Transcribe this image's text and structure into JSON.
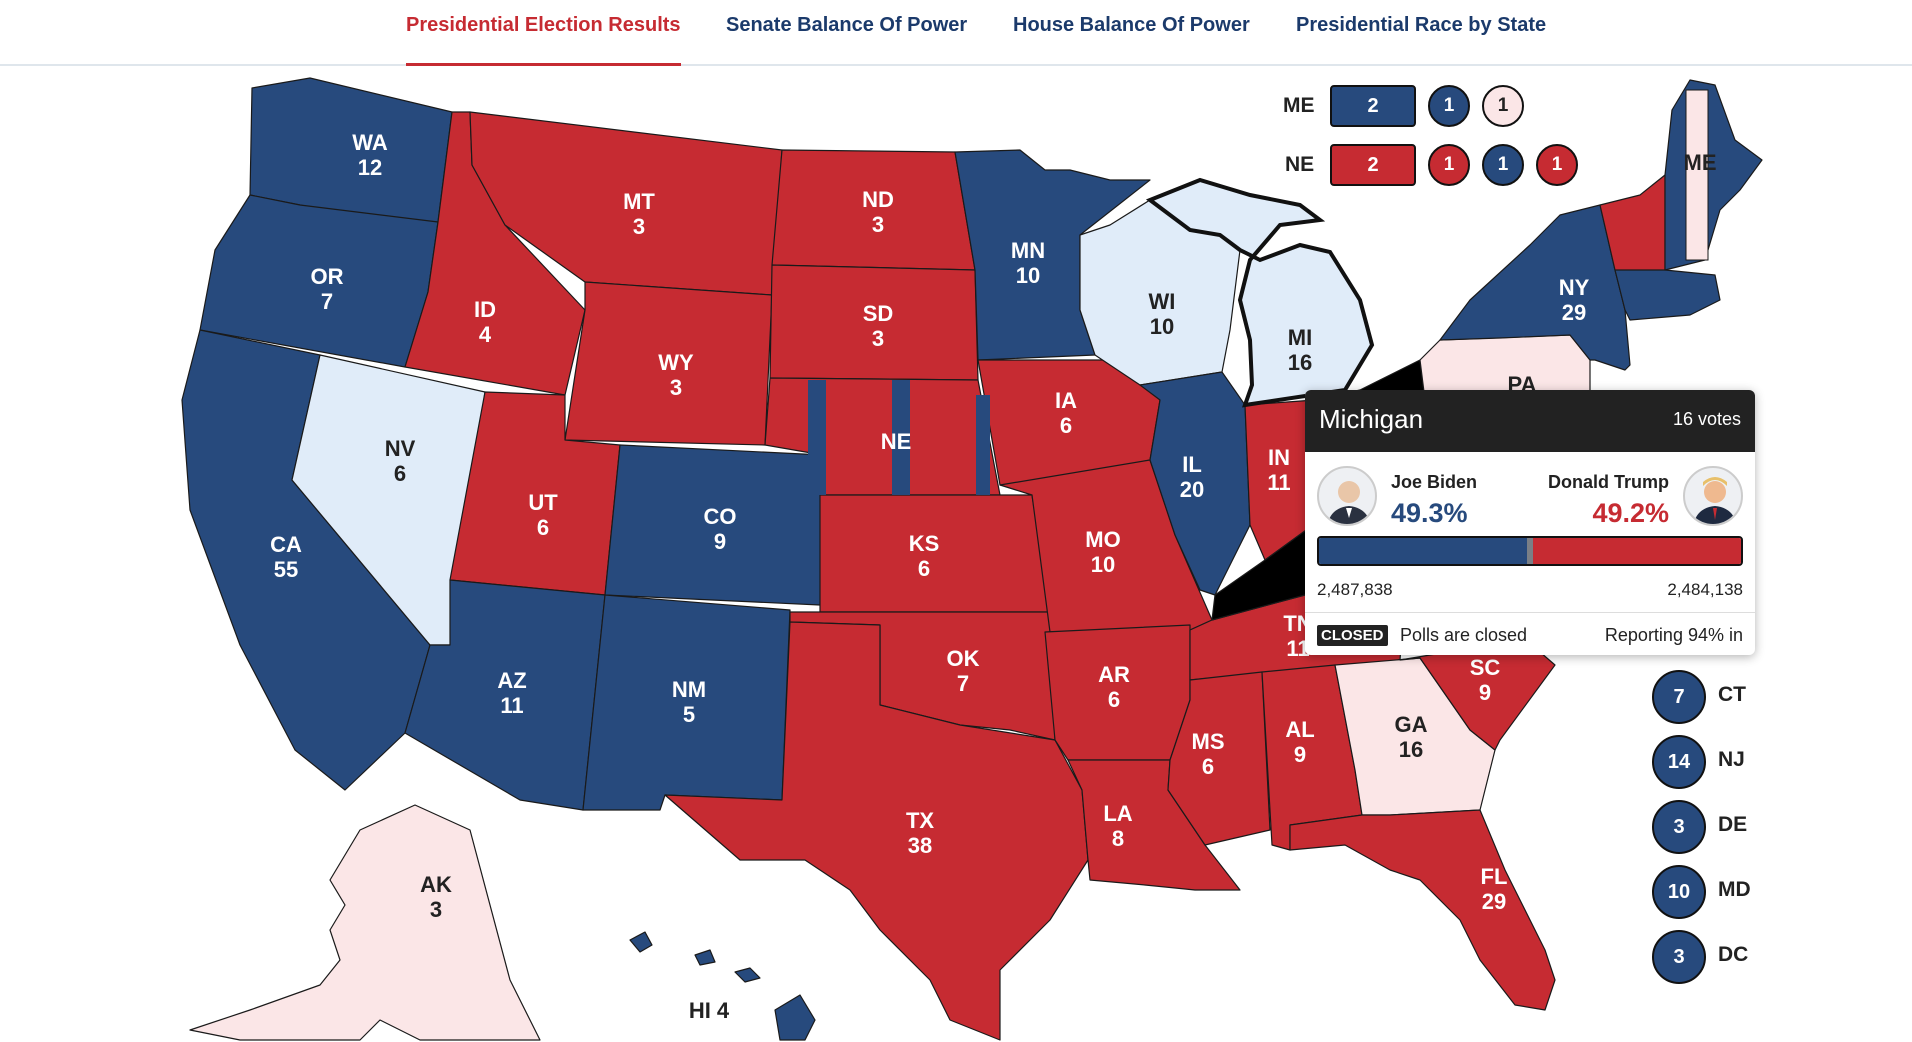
{
  "nav": {
    "tabs": [
      {
        "label": "Presidential Election Results",
        "active": true
      },
      {
        "label": "Senate Balance Of Power",
        "active": false
      },
      {
        "label": "House Balance Of Power",
        "active": false
      },
      {
        "label": "Presidential Race by State",
        "active": false
      }
    ]
  },
  "colors": {
    "dem": "#274a7d",
    "rep": "#c62b32",
    "lean_dem": "#e0ecf9",
    "lean_rep": "#fbe6e7"
  },
  "states": {
    "WA": {
      "abbr": "WA",
      "ev": "12",
      "winner": "dem"
    },
    "OR": {
      "abbr": "OR",
      "ev": "7",
      "winner": "dem"
    },
    "CA": {
      "abbr": "CA",
      "ev": "55",
      "winner": "dem"
    },
    "NV": {
      "abbr": "NV",
      "ev": "6",
      "winner": "lean_dem"
    },
    "ID": {
      "abbr": "ID",
      "ev": "4",
      "winner": "rep"
    },
    "MT": {
      "abbr": "MT",
      "ev": "3",
      "winner": "rep"
    },
    "WY": {
      "abbr": "WY",
      "ev": "3",
      "winner": "rep"
    },
    "UT": {
      "abbr": "UT",
      "ev": "6",
      "winner": "rep"
    },
    "AZ": {
      "abbr": "AZ",
      "ev": "11",
      "winner": "dem"
    },
    "CO": {
      "abbr": "CO",
      "ev": "9",
      "winner": "dem"
    },
    "NM": {
      "abbr": "NM",
      "ev": "5",
      "winner": "dem"
    },
    "ND": {
      "abbr": "ND",
      "ev": "3",
      "winner": "rep"
    },
    "SD": {
      "abbr": "SD",
      "ev": "3",
      "winner": "rep"
    },
    "NE": {
      "abbr": "NE",
      "ev": "",
      "winner": "rep"
    },
    "KS": {
      "abbr": "KS",
      "ev": "6",
      "winner": "rep"
    },
    "OK": {
      "abbr": "OK",
      "ev": "7",
      "winner": "rep"
    },
    "TX": {
      "abbr": "TX",
      "ev": "38",
      "winner": "rep"
    },
    "MN": {
      "abbr": "MN",
      "ev": "10",
      "winner": "dem"
    },
    "IA": {
      "abbr": "IA",
      "ev": "6",
      "winner": "rep"
    },
    "MO": {
      "abbr": "MO",
      "ev": "10",
      "winner": "rep"
    },
    "AR": {
      "abbr": "AR",
      "ev": "6",
      "winner": "rep"
    },
    "LA": {
      "abbr": "LA",
      "ev": "8",
      "winner": "rep"
    },
    "WI": {
      "abbr": "WI",
      "ev": "10",
      "winner": "lean_dem"
    },
    "MI": {
      "abbr": "MI",
      "ev": "16",
      "winner": "lean_dem"
    },
    "IL": {
      "abbr": "IL",
      "ev": "20",
      "winner": "dem"
    },
    "IN": {
      "abbr": "IN",
      "ev": "11",
      "winner": "rep"
    },
    "MS": {
      "abbr": "MS",
      "ev": "6",
      "winner": "rep"
    },
    "AL": {
      "abbr": "AL",
      "ev": "9",
      "winner": "rep"
    },
    "TN": {
      "abbr": "TN",
      "ev": "11",
      "winner": "rep"
    },
    "GA": {
      "abbr": "GA",
      "ev": "16",
      "winner": "lean_rep"
    },
    "FL": {
      "abbr": "FL",
      "ev": "29",
      "winner": "rep"
    },
    "SC": {
      "abbr": "SC",
      "ev": "9",
      "winner": "rep"
    },
    "PA": {
      "abbr": "PA",
      "ev": "",
      "winner": "lean_rep"
    },
    "NY": {
      "abbr": "NY",
      "ev": "29",
      "winner": "dem"
    },
    "ME": {
      "abbr": "ME",
      "ev": "",
      "winner": "dem"
    },
    "AK": {
      "abbr": "AK",
      "ev": "3",
      "winner": "lean_rep"
    },
    "HI": {
      "label": "HI 4",
      "winner": "dem"
    }
  },
  "split_states": {
    "me": {
      "label": "ME",
      "boxes": [
        "2"
      ],
      "circles": [
        "1",
        "1"
      ]
    },
    "ne": {
      "label": "NE",
      "boxes": [
        "2"
      ],
      "circles": [
        "1",
        "1",
        "1"
      ]
    }
  },
  "northeast": [
    {
      "ev": "7",
      "abbr": "CT"
    },
    {
      "ev": "14",
      "abbr": "NJ"
    },
    {
      "ev": "3",
      "abbr": "DE"
    },
    {
      "ev": "10",
      "abbr": "MD"
    },
    {
      "ev": "3",
      "abbr": "DC"
    }
  ],
  "tooltip": {
    "state": "Michigan",
    "votes_label": "16 votes",
    "dem": {
      "name": "Joe Biden",
      "pct": "49.3%",
      "votes": "2,487,838",
      "share": 0.493
    },
    "rep": {
      "name": "Donald Trump",
      "pct": "49.2%",
      "votes": "2,484,138",
      "share": 0.492
    },
    "status_badge": "CLOSED",
    "status_text": "Polls are closed",
    "reporting": "Reporting 94% in"
  }
}
